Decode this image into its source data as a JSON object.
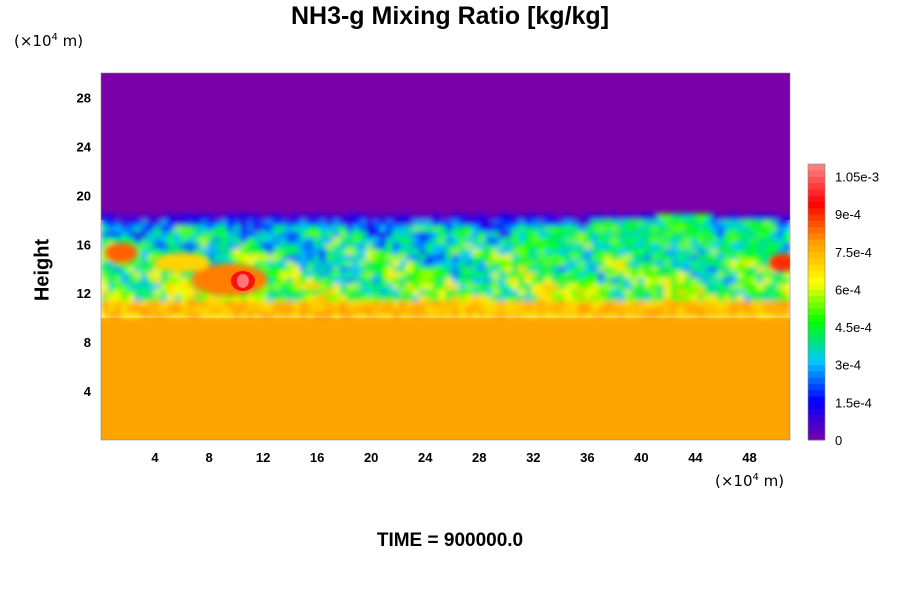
{
  "page": {
    "title": "NH3-g Mixing Ratio [kg/kg]",
    "unit_base": "(×10",
    "unit_exp": "4",
    "unit_tail": " m)",
    "time_label": "TIME = 900000.0"
  },
  "chart_data": {
    "type": "heatmap",
    "title": "NH3-g Mixing Ratio [kg/kg]",
    "ylabel": "Height",
    "xlabel": "",
    "x_unit": "(×10^4 m)",
    "y_unit": "(×10^4 m)",
    "xlim": [
      0,
      51
    ],
    "ylim": [
      0,
      30
    ],
    "x_ticks": [
      4,
      8,
      12,
      16,
      20,
      24,
      28,
      32,
      36,
      40,
      44,
      48
    ],
    "y_ticks": [
      4,
      8,
      12,
      16,
      20,
      24,
      28
    ],
    "x_tick_labels": [
      "4",
      "8",
      "12",
      "16",
      "20",
      "24",
      "28",
      "32",
      "36",
      "40",
      "44",
      "48"
    ],
    "y_tick_labels": [
      "4",
      "8",
      "12",
      "16",
      "20",
      "24",
      "28"
    ],
    "colorbar": {
      "range": [
        0,
        0.0011
      ],
      "tick_values": [
        0,
        0.00015,
        0.0003,
        0.00045,
        0.0006,
        0.00075,
        0.0009,
        0.00105
      ],
      "tick_labels": [
        "0",
        "1.5e-4",
        "3e-4",
        "4.5e-4",
        "6e-4",
        "7.5e-4",
        "9e-4",
        "1.05e-3"
      ],
      "colors": [
        "#7a00aa",
        "#0000ff",
        "#00c8ff",
        "#00ff00",
        "#ffff00",
        "#ffa000",
        "#ff0000",
        "#ff8888"
      ]
    },
    "field_summary": {
      "lower_layer": {
        "y_range": [
          0,
          10
        ],
        "value": 0.00078
      },
      "turbulent_layer": {
        "y_range": [
          10,
          18
        ],
        "value_range": [
          0.0002,
          0.0011
        ]
      },
      "upper_layer": {
        "y_range": [
          18,
          30
        ],
        "value": 0
      },
      "peak": {
        "x": 10.5,
        "y": 13,
        "value": 0.00108
      }
    },
    "time": "TIME = 900000.0"
  }
}
